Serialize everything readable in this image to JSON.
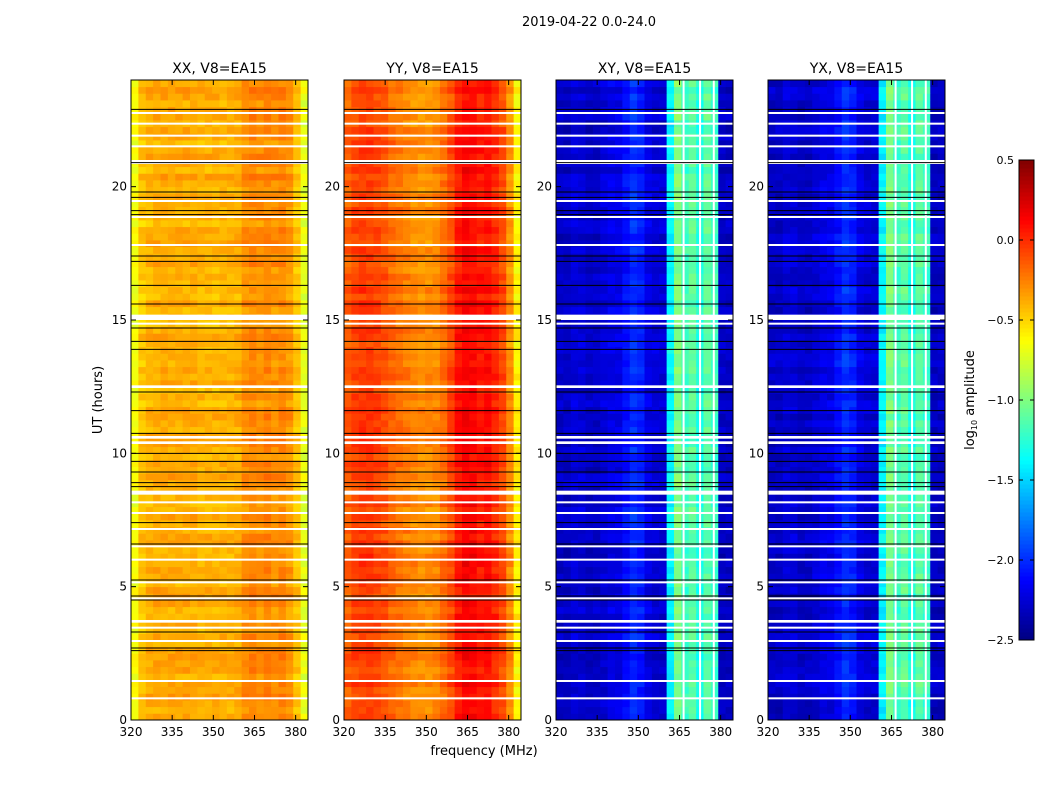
{
  "chart_data": {
    "type": "heatmap",
    "title": "2019-04-22 0.0-24.0",
    "xlabel": "frequency (MHz)",
    "ylabel": "UT (hours)",
    "xlim": [
      320,
      384.5
    ],
    "ylim": [
      0,
      24
    ],
    "xticks": [
      320,
      335,
      350,
      365,
      380
    ],
    "yticks": [
      0,
      5,
      10,
      15,
      20
    ],
    "colorbar": {
      "label_main": "log",
      "label_sub": "10",
      "label_rest": " amplitude",
      "range": [
        -2.5,
        0.5
      ],
      "ticks": [
        0.5,
        0.0,
        -0.5,
        -1.0,
        -1.5,
        -2.0,
        -2.5
      ],
      "tick_labels": [
        "0.5",
        "0.0",
        "−0.5",
        "−1.0",
        "−1.5",
        "−2.0",
        "−2.5"
      ],
      "colormap": "jet"
    },
    "time_bins": 96,
    "panels": [
      {
        "title": "XX, V8=EA15",
        "mean_log10_amplitude": [
          -0.65,
          -0.45,
          -0.4,
          -0.38,
          -0.38,
          -0.38,
          -0.38,
          -0.38,
          -0.38,
          -0.4,
          -0.4,
          -0.4,
          -0.4,
          -0.4,
          -0.38,
          -0.3,
          -0.27,
          -0.3,
          -0.27,
          -0.3,
          -0.27,
          -0.32,
          -0.45,
          -0.7
        ]
      },
      {
        "title": "YY, V8=EA15",
        "mean_log10_amplitude": [
          -0.15,
          -0.08,
          -0.05,
          -0.05,
          -0.08,
          -0.12,
          -0.18,
          -0.22,
          -0.25,
          -0.28,
          -0.3,
          -0.3,
          -0.28,
          -0.2,
          -0.1,
          0.05,
          0.12,
          0.1,
          0.05,
          0.08,
          0.0,
          -0.1,
          -0.3,
          -0.6
        ]
      },
      {
        "title": "XY, V8=EA15",
        "mean_log10_amplitude": [
          -2.3,
          -2.3,
          -2.25,
          -2.25,
          -2.3,
          -2.3,
          -2.25,
          -2.2,
          -2.2,
          -2.1,
          -2.0,
          -2.05,
          -2.2,
          -2.25,
          -2.25,
          -1.4,
          -1.0,
          -1.2,
          -1.1,
          -1.3,
          -1.1,
          -1.2,
          -2.3,
          -2.3
        ],
        "flagged_channels_mhz": [
          366.5,
          372.5,
          377.5
        ]
      },
      {
        "title": "YX, V8=EA15",
        "mean_log10_amplitude": [
          -2.3,
          -2.3,
          -2.25,
          -2.25,
          -2.3,
          -2.3,
          -2.25,
          -2.2,
          -2.2,
          -2.1,
          -2.0,
          -2.05,
          -2.2,
          -2.25,
          -2.25,
          -1.4,
          -1.0,
          -1.2,
          -1.1,
          -1.3,
          -1.1,
          -1.2,
          -2.3,
          -2.3
        ],
        "flagged_channels_mhz": [
          366.5,
          372.5,
          377.5
        ]
      }
    ],
    "flagged_time_ranges_hours": [
      [
        22.75,
        22.8
      ],
      [
        22.35,
        22.4
      ],
      [
        21.9,
        21.95
      ],
      [
        21.5,
        21.55
      ],
      [
        20.85,
        21.0
      ],
      [
        19.45,
        19.5
      ],
      [
        18.85,
        18.9
      ],
      [
        17.8,
        17.85
      ],
      [
        15.0,
        15.2
      ],
      [
        14.85,
        14.9
      ],
      [
        12.45,
        12.55
      ],
      [
        10.35,
        10.45
      ],
      [
        10.55,
        10.65
      ],
      [
        8.45,
        8.6
      ],
      [
        8.15,
        8.2
      ],
      [
        7.75,
        7.8
      ],
      [
        7.15,
        7.2
      ],
      [
        6.5,
        6.55
      ],
      [
        6.0,
        6.05
      ],
      [
        5.15,
        5.2
      ],
      [
        4.55,
        4.6
      ],
      [
        3.65,
        3.75
      ],
      [
        3.45,
        3.5
      ],
      [
        2.95,
        3.0
      ],
      [
        1.45,
        1.5
      ],
      [
        0.8,
        0.85
      ]
    ],
    "time_boundaries_hours": [
      22.9,
      20.9,
      19.8,
      19.6,
      19.1,
      18.95,
      17.4,
      17.2,
      16.3,
      15.6,
      14.7,
      14.2,
      13.9,
      12.3,
      11.6,
      10.75,
      10.0,
      9.7,
      9.3,
      8.9,
      8.75,
      7.4,
      6.6,
      5.25,
      4.65,
      4.5,
      3.3,
      2.7,
      2.6
    ]
  }
}
